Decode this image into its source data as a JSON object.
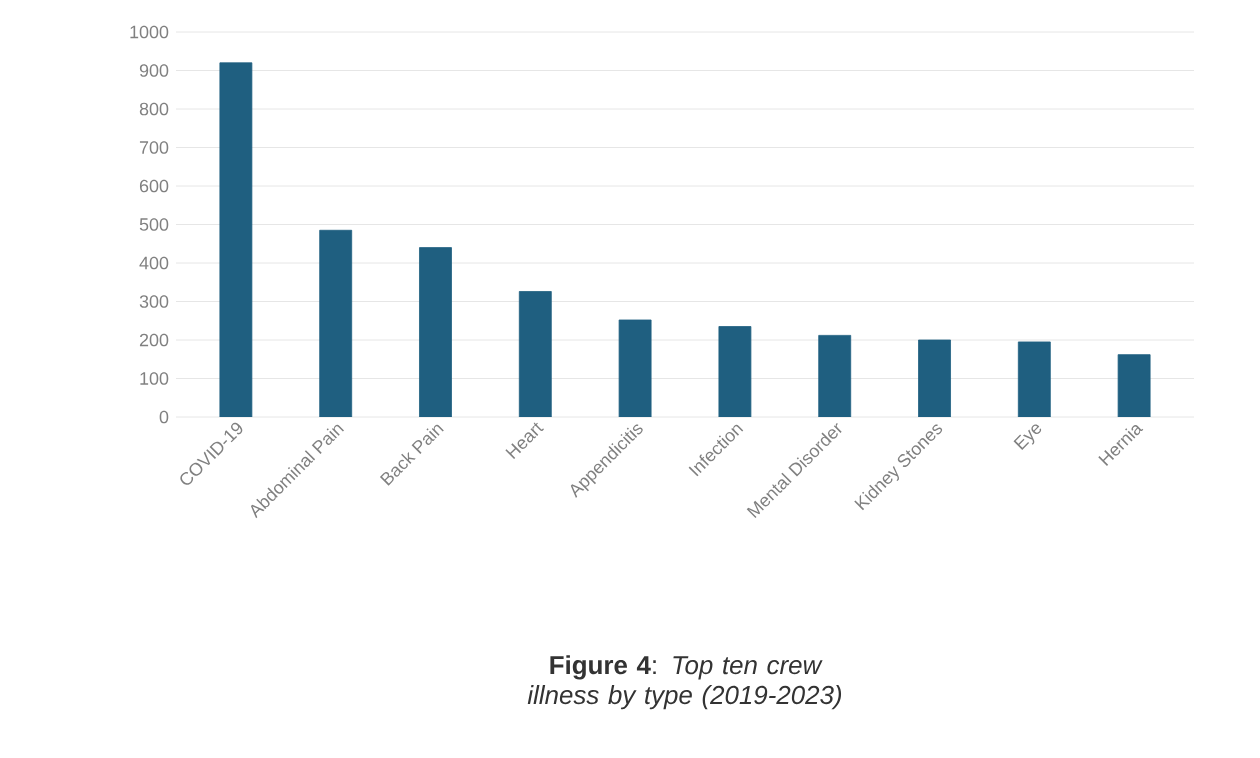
{
  "chart_data": {
    "type": "bar",
    "title": "**Figure 4**: *Top ten crew illness by type (2019-2023)*",
    "categories": [
      "COVID-19",
      "Abdominal Pain",
      "Back Pain",
      "Heart",
      "Appendicitis",
      "Infection",
      "Mental Disorder",
      "Kidney Stones",
      "Eye",
      "Hernia"
    ],
    "values": [
      920,
      485,
      440,
      326,
      252,
      235,
      212,
      200,
      195,
      162
    ],
    "color": "#1f5f80",
    "ylim": [
      0,
      1000
    ],
    "yticks": [
      0,
      100,
      200,
      300,
      400,
      500,
      600,
      700,
      800,
      900,
      1000
    ],
    "grid": "y"
  }
}
